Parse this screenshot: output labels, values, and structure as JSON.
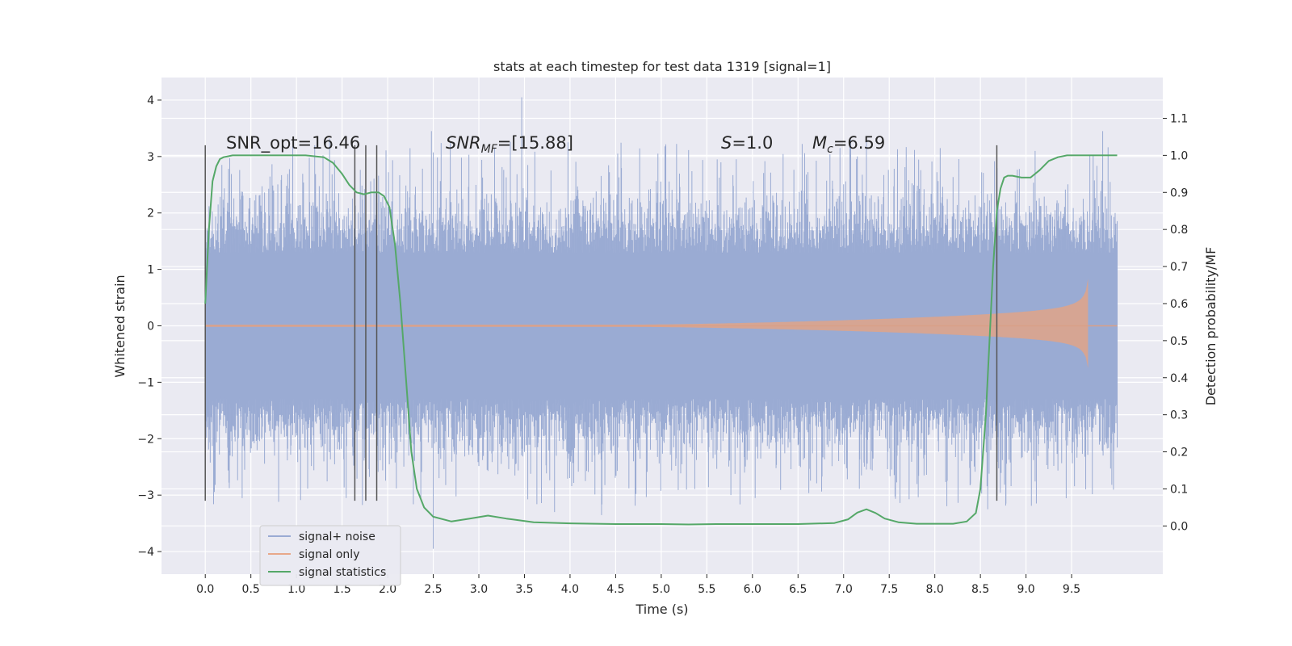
{
  "chart_data": {
    "type": "line",
    "title": "stats at each timestep for test data 1319 [signal=1]",
    "xlabel": "Time (s)",
    "ylabel": "Whitened strain",
    "ylabel_right": "Detection probability/MF",
    "xlim": [
      -0.48,
      10.5
    ],
    "ylim": [
      -4.4,
      4.4
    ],
    "ylim_right": [
      -0.13,
      1.21
    ],
    "x_ticks": [
      "0.0",
      "0.5",
      "1.0",
      "1.5",
      "2.0",
      "2.5",
      "3.0",
      "3.5",
      "4.0",
      "4.5",
      "5.0",
      "5.5",
      "6.0",
      "6.5",
      "7.0",
      "7.5",
      "8.0",
      "8.5",
      "9.0",
      "9.5"
    ],
    "y_ticks": [
      "4",
      "3",
      "2",
      "1",
      "0",
      "−1",
      "−2",
      "−3",
      "−4"
    ],
    "y_ticks_right": [
      "1.1",
      "1.0",
      "0.9",
      "0.8",
      "0.7",
      "0.6",
      "0.5",
      "0.4",
      "0.3",
      "0.2",
      "0.1",
      "0.0"
    ],
    "grid": true,
    "legend_position": "lower-left",
    "annotations": {
      "snr_opt": "SNR_opt=16.46",
      "snr_mf_var": "SNR",
      "snr_mf_sub": "MF",
      "snr_mf_val": "=[15.88]",
      "s_var": "S",
      "s_val": "=1.0",
      "mc_var": "M",
      "mc_sub": "c",
      "mc_val": "=6.59"
    },
    "vertical_lines_x": [
      0.0,
      1.64,
      1.76,
      1.88,
      8.68
    ],
    "vertical_lines_range": [
      -3.1,
      3.2
    ],
    "series": [
      {
        "name": "signal+ noise",
        "color": "#9aabd3",
        "x_range": [
          0.0,
          10.0
        ],
        "envelope": [
          1.3,
          2.1,
          3.5,
          4.05,
          -3.95
        ],
        "note_key": "noise"
      },
      {
        "name": "signal only",
        "color": "#dd8452",
        "x_range": [
          0.0,
          9.68
        ],
        "chirp_peak": 1.45,
        "chirp_end": 9.68
      },
      {
        "name": "signal statistics",
        "color": "#55a868",
        "x": [
          0.0,
          0.04,
          0.08,
          0.12,
          0.16,
          0.2,
          0.3,
          0.5,
          0.8,
          1.1,
          1.3,
          1.4,
          1.5,
          1.58,
          1.66,
          1.74,
          1.82,
          1.9,
          1.96,
          2.02,
          2.08,
          2.14,
          2.2,
          2.26,
          2.32,
          2.4,
          2.5,
          2.7,
          2.9,
          3.1,
          3.3,
          3.6,
          4.0,
          4.5,
          5.0,
          5.3,
          5.6,
          6.0,
          6.5,
          6.9,
          7.05,
          7.15,
          7.25,
          7.35,
          7.45,
          7.6,
          7.8,
          8.0,
          8.2,
          8.35,
          8.45,
          8.5,
          8.56,
          8.6,
          8.64,
          8.68,
          8.72,
          8.76,
          8.8,
          8.85,
          8.95,
          9.05,
          9.15,
          9.25,
          9.35,
          9.45,
          9.55,
          9.7,
          9.9,
          10.0
        ],
        "y": [
          0.6,
          0.8,
          0.93,
          0.97,
          0.99,
          0.995,
          1.0,
          1.0,
          1.0,
          1.0,
          0.995,
          0.98,
          0.95,
          0.92,
          0.9,
          0.895,
          0.9,
          0.9,
          0.89,
          0.86,
          0.76,
          0.6,
          0.4,
          0.2,
          0.1,
          0.05,
          0.025,
          0.012,
          0.02,
          0.028,
          0.02,
          0.01,
          0.007,
          0.005,
          0.005,
          0.004,
          0.005,
          0.005,
          0.005,
          0.008,
          0.018,
          0.036,
          0.045,
          0.035,
          0.02,
          0.01,
          0.006,
          0.006,
          0.006,
          0.012,
          0.035,
          0.1,
          0.3,
          0.5,
          0.7,
          0.85,
          0.91,
          0.94,
          0.945,
          0.945,
          0.94,
          0.94,
          0.96,
          0.985,
          0.995,
          1.0,
          1.0,
          1.0,
          1.0,
          1.0
        ]
      }
    ]
  }
}
